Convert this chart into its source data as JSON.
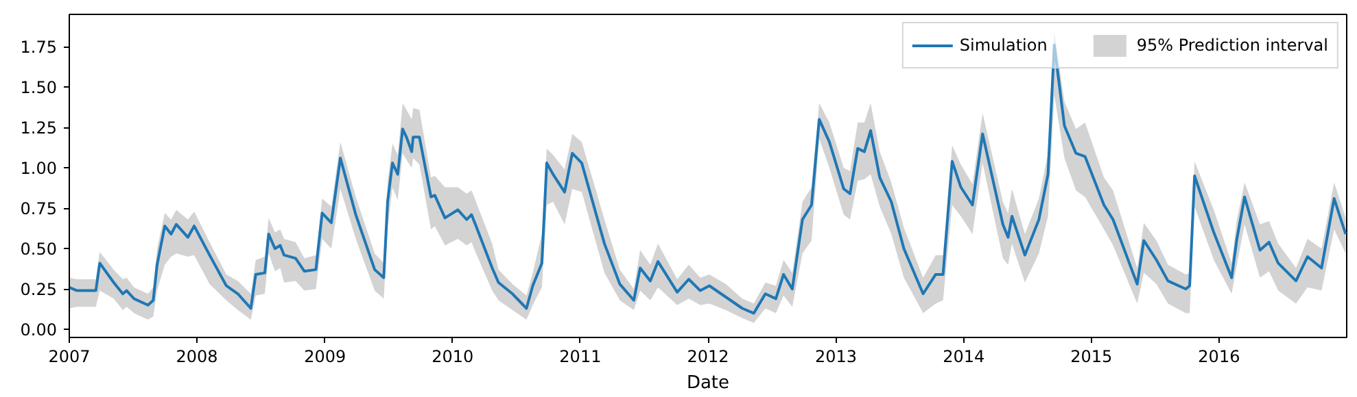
{
  "chart_data": {
    "type": "line",
    "xlabel": "Date",
    "legend": "top right",
    "grid": false,
    "marker": "none",
    "line_style": "solid",
    "xlim": [
      "2007-01-01",
      "2016-12-31"
    ],
    "xticks": [
      {
        "value": "2007-01-01",
        "label": "2007"
      },
      {
        "value": "2008-01-01",
        "label": "2008"
      },
      {
        "value": "2009-01-01",
        "label": "2009"
      },
      {
        "value": "2010-01-01",
        "label": "2010"
      },
      {
        "value": "2011-01-01",
        "label": "2011"
      },
      {
        "value": "2012-01-01",
        "label": "2012"
      },
      {
        "value": "2013-01-01",
        "label": "2013"
      },
      {
        "value": "2014-01-01",
        "label": "2014"
      },
      {
        "value": "2015-01-01",
        "label": "2015"
      },
      {
        "value": "2016-01-01",
        "label": "2016"
      }
    ],
    "ylim": [
      -0.05,
      1.95
    ],
    "yticks": [
      {
        "value": 0,
        "label": "0.00"
      },
      {
        "value": 0.25,
        "label": "0.25"
      },
      {
        "value": 0.5,
        "label": "0.50"
      },
      {
        "value": 0.75,
        "label": "0.75"
      },
      {
        "value": 1,
        "label": "1.00"
      },
      {
        "value": 1.25,
        "label": "1.25"
      },
      {
        "value": 1.5,
        "label": "1.50"
      },
      {
        "value": 1.75,
        "label": "1.75"
      }
    ],
    "x": [
      "2007-01-01",
      "2007-01-23",
      "2007-03-18",
      "2007-03-29",
      "2007-05-08",
      "2007-06-03",
      "2007-06-14",
      "2007-07-05",
      "2007-08-14",
      "2007-08-29",
      "2007-09-09",
      "2007-10-01",
      "2007-10-19",
      "2007-11-03",
      "2007-12-06",
      "2007-12-24",
      "2008-02-06",
      "2008-03-25",
      "2008-04-27",
      "2008-06-03",
      "2008-06-17",
      "2008-07-13",
      "2008-07-24",
      "2008-08-11",
      "2008-08-26",
      "2008-09-06",
      "2008-10-09",
      "2008-11-03",
      "2008-12-06",
      "2008-12-24",
      "2009-01-19",
      "2009-02-14",
      "2009-03-30",
      "2009-05-23",
      "2009-06-18",
      "2009-06-29",
      "2009-07-13",
      "2009-07-28",
      "2009-08-11",
      "2009-08-22",
      "2009-09-06",
      "2009-09-10",
      "2009-09-28",
      "2009-10-31",
      "2009-11-11",
      "2009-12-10",
      "2010-01-16",
      "2010-02-10",
      "2010-02-24",
      "2010-03-07",
      "2010-04-24",
      "2010-05-12",
      "2010-06-21",
      "2010-07-31",
      "2010-08-18",
      "2010-09-13",
      "2010-09-27",
      "2010-10-15",
      "2010-11-17",
      "2010-12-09",
      "2011-01-05",
      "2011-03-11",
      "2011-04-24",
      "2011-06-03",
      "2011-06-21",
      "2011-07-20",
      "2011-08-11",
      "2011-10-05",
      "2011-11-07",
      "2011-12-10",
      "2012-01-05",
      "2012-02-21",
      "2012-04-08",
      "2012-05-11",
      "2012-06-13",
      "2012-07-13",
      "2012-08-04",
      "2012-08-29",
      "2012-09-27",
      "2012-10-23",
      "2012-11-14",
      "2012-12-13",
      "2013-01-23",
      "2013-02-10",
      "2013-03-04",
      "2013-03-23",
      "2013-04-10",
      "2013-05-06",
      "2013-06-08",
      "2013-07-14",
      "2013-09-07",
      "2013-10-13",
      "2013-11-03",
      "2013-11-29",
      "2013-12-24",
      "2014-01-26",
      "2014-02-24",
      "2014-04-23",
      "2014-05-08",
      "2014-05-19",
      "2014-06-25",
      "2014-08-04",
      "2014-08-30",
      "2014-09-17",
      "2014-10-16",
      "2014-11-18",
      "2014-12-14",
      "2015-02-06",
      "2015-03-04",
      "2015-05-12",
      "2015-05-31",
      "2015-07-06",
      "2015-08-08",
      "2015-09-28",
      "2015-10-09",
      "2015-10-23",
      "2015-12-17",
      "2016-02-06",
      "2016-02-21",
      "2016-03-14",
      "2016-04-27",
      "2016-05-23",
      "2016-06-18",
      "2016-08-08",
      "2016-09-10",
      "2016-10-20",
      "2016-11-25",
      "2016-12-28"
    ],
    "series": [
      {
        "name": "95% Prediction interval",
        "type": "area",
        "color": "#d3d3d3",
        "values": [
          null,
          null,
          null,
          null,
          null,
          null,
          null,
          null,
          null,
          null,
          null,
          null,
          null,
          null,
          null,
          null,
          null,
          null,
          null,
          null,
          null,
          null,
          null,
          null,
          null,
          null,
          null,
          null,
          null,
          null,
          null,
          null,
          null,
          null,
          null,
          null,
          null,
          null,
          null,
          null,
          null,
          null,
          null,
          null,
          null,
          null,
          null,
          null,
          null,
          null,
          null,
          null,
          null,
          null,
          null,
          null,
          null,
          null,
          null,
          null,
          null,
          null,
          null,
          null,
          null,
          null,
          null,
          null,
          null,
          null,
          null,
          null,
          null,
          null,
          null,
          null,
          null,
          null,
          null,
          null,
          null,
          null,
          null,
          null,
          null,
          null,
          null,
          null,
          null,
          null,
          null,
          null,
          null,
          null,
          null,
          null,
          null,
          null,
          null,
          null,
          null,
          null,
          null,
          null,
          null,
          null,
          null,
          null,
          null,
          null,
          null,
          null,
          null,
          null,
          null,
          null,
          null,
          null,
          null,
          null,
          null,
          null,
          null,
          null,
          null,
          null,
          null,
          null
        ]
      },
      {
        "name": "Simulation",
        "color": "#1f77b4",
        "lower": [
          0.13,
          0.14,
          0.14,
          0.24,
          0.19,
          0.12,
          0.14,
          0.1,
          0.06,
          0.08,
          0.24,
          0.4,
          0.45,
          0.47,
          0.45,
          0.46,
          0.28,
          0.18,
          0.12,
          0.06,
          0.21,
          0.22,
          0.47,
          0.36,
          0.38,
          0.29,
          0.3,
          0.24,
          0.25,
          0.56,
          0.5,
          0.87,
          0.56,
          0.24,
          0.19,
          0.62,
          0.88,
          0.8,
          1.09,
          1.05,
          1.0,
          1.06,
          1.02,
          0.62,
          0.64,
          0.52,
          0.56,
          0.52,
          0.54,
          0.48,
          0.24,
          0.18,
          0.12,
          0.06,
          0.15,
          0.26,
          0.77,
          0.79,
          0.65,
          0.87,
          0.85,
          0.35,
          0.18,
          0.12,
          0.24,
          0.18,
          0.26,
          0.15,
          0.19,
          0.15,
          0.16,
          0.12,
          0.07,
          0.04,
          0.13,
          0.1,
          0.21,
          0.14,
          0.47,
          0.55,
          1.18,
          1.0,
          0.71,
          0.68,
          0.92,
          0.93,
          0.96,
          0.76,
          0.59,
          0.32,
          0.1,
          0.16,
          0.18,
          0.77,
          0.7,
          0.59,
          1.03,
          0.44,
          0.4,
          0.53,
          0.29,
          0.47,
          0.7,
          1.45,
          1.06,
          0.86,
          0.82,
          0.62,
          0.52,
          0.16,
          0.35,
          0.28,
          0.16,
          0.1,
          0.1,
          0.76,
          0.43,
          0.22,
          0.4,
          0.65,
          0.32,
          0.36,
          0.24,
          0.16,
          0.26,
          0.24,
          0.62,
          0.47
        ],
        "upper": [
          0.32,
          0.31,
          0.31,
          0.48,
          0.37,
          0.31,
          0.32,
          0.26,
          0.22,
          0.26,
          0.5,
          0.72,
          0.68,
          0.74,
          0.68,
          0.73,
          0.54,
          0.34,
          0.3,
          0.22,
          0.43,
          0.45,
          0.69,
          0.6,
          0.62,
          0.56,
          0.54,
          0.44,
          0.46,
          0.81,
          0.76,
          1.16,
          0.82,
          0.47,
          0.41,
          0.91,
          1.15,
          1.08,
          1.4,
          1.36,
          1.3,
          1.37,
          1.36,
          0.94,
          0.95,
          0.88,
          0.88,
          0.84,
          0.86,
          0.8,
          0.53,
          0.37,
          0.28,
          0.21,
          0.35,
          0.59,
          1.12,
          1.08,
          0.99,
          1.21,
          1.16,
          0.68,
          0.37,
          0.25,
          0.49,
          0.4,
          0.53,
          0.31,
          0.4,
          0.32,
          0.34,
          0.28,
          0.19,
          0.16,
          0.29,
          0.27,
          0.43,
          0.35,
          0.79,
          0.88,
          1.4,
          1.28,
          1.0,
          0.98,
          1.28,
          1.28,
          1.4,
          1.1,
          0.91,
          0.63,
          0.32,
          0.46,
          0.46,
          1.14,
          1.02,
          0.9,
          1.34,
          0.79,
          0.72,
          0.87,
          0.59,
          0.81,
          1.09,
          1.84,
          1.41,
          1.24,
          1.28,
          0.94,
          0.86,
          0.38,
          0.66,
          0.55,
          0.4,
          0.34,
          0.35,
          1.04,
          0.74,
          0.41,
          0.68,
          0.91,
          0.65,
          0.67,
          0.53,
          0.38,
          0.56,
          0.5,
          0.91,
          0.69
        ],
        "values": [
          0.26,
          0.24,
          0.24,
          0.41,
          0.29,
          0.22,
          0.24,
          0.19,
          0.15,
          0.18,
          0.4,
          0.64,
          0.59,
          0.65,
          0.57,
          0.64,
          0.46,
          0.27,
          0.22,
          0.13,
          0.34,
          0.35,
          0.59,
          0.5,
          0.52,
          0.46,
          0.44,
          0.36,
          0.37,
          0.72,
          0.66,
          1.06,
          0.71,
          0.37,
          0.32,
          0.79,
          1.03,
          0.96,
          1.24,
          1.19,
          1.1,
          1.19,
          1.19,
          0.82,
          0.83,
          0.69,
          0.74,
          0.68,
          0.71,
          0.65,
          0.38,
          0.29,
          0.22,
          0.13,
          0.27,
          0.41,
          1.03,
          0.96,
          0.85,
          1.09,
          1.03,
          0.53,
          0.28,
          0.18,
          0.38,
          0.3,
          0.42,
          0.23,
          0.31,
          0.24,
          0.27,
          0.2,
          0.13,
          0.1,
          0.22,
          0.19,
          0.34,
          0.25,
          0.68,
          0.77,
          1.3,
          1.16,
          0.87,
          0.84,
          1.12,
          1.1,
          1.23,
          0.94,
          0.79,
          0.5,
          0.22,
          0.34,
          0.34,
          1.04,
          0.88,
          0.77,
          1.21,
          0.65,
          0.57,
          0.7,
          0.46,
          0.68,
          0.96,
          1.76,
          1.26,
          1.09,
          1.07,
          0.77,
          0.68,
          0.28,
          0.55,
          0.43,
          0.3,
          0.25,
          0.27,
          0.95,
          0.6,
          0.32,
          0.56,
          0.82,
          0.49,
          0.54,
          0.41,
          0.3,
          0.45,
          0.38,
          0.81,
          0.59
        ]
      }
    ]
  }
}
